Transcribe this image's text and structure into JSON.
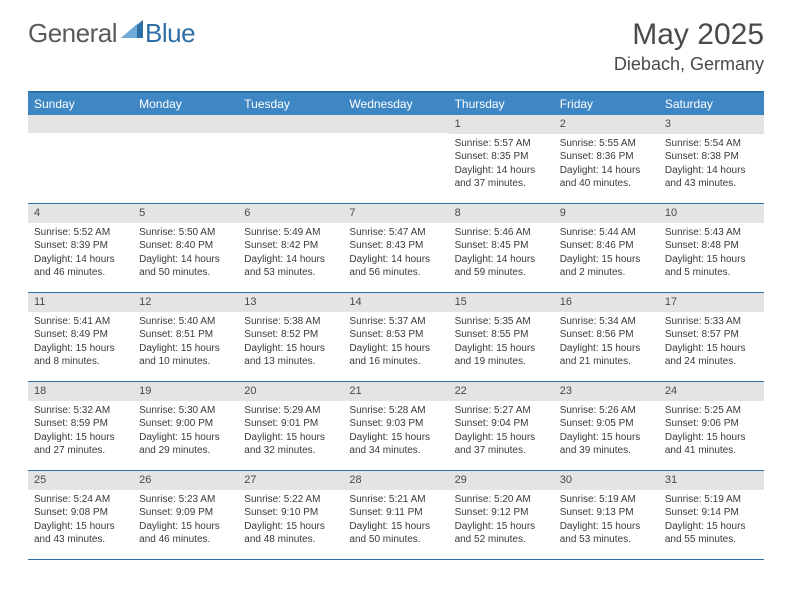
{
  "logo": {
    "part1": "General",
    "part2": "Blue"
  },
  "title": "May 2025",
  "location": "Diebach, Germany",
  "colors": {
    "header_bar": "#3e87c4",
    "border": "#2f6fa8",
    "daynum_bg": "#e4e4e4",
    "text": "#3a3a3a",
    "title_text": "#4a4a4a"
  },
  "weekdays": [
    "Sunday",
    "Monday",
    "Tuesday",
    "Wednesday",
    "Thursday",
    "Friday",
    "Saturday"
  ],
  "weeks": [
    [
      {
        "n": "",
        "sr": "",
        "ss": "",
        "dl": ""
      },
      {
        "n": "",
        "sr": "",
        "ss": "",
        "dl": ""
      },
      {
        "n": "",
        "sr": "",
        "ss": "",
        "dl": ""
      },
      {
        "n": "",
        "sr": "",
        "ss": "",
        "dl": ""
      },
      {
        "n": "1",
        "sr": "Sunrise: 5:57 AM",
        "ss": "Sunset: 8:35 PM",
        "dl": "Daylight: 14 hours and 37 minutes."
      },
      {
        "n": "2",
        "sr": "Sunrise: 5:55 AM",
        "ss": "Sunset: 8:36 PM",
        "dl": "Daylight: 14 hours and 40 minutes."
      },
      {
        "n": "3",
        "sr": "Sunrise: 5:54 AM",
        "ss": "Sunset: 8:38 PM",
        "dl": "Daylight: 14 hours and 43 minutes."
      }
    ],
    [
      {
        "n": "4",
        "sr": "Sunrise: 5:52 AM",
        "ss": "Sunset: 8:39 PM",
        "dl": "Daylight: 14 hours and 46 minutes."
      },
      {
        "n": "5",
        "sr": "Sunrise: 5:50 AM",
        "ss": "Sunset: 8:40 PM",
        "dl": "Daylight: 14 hours and 50 minutes."
      },
      {
        "n": "6",
        "sr": "Sunrise: 5:49 AM",
        "ss": "Sunset: 8:42 PM",
        "dl": "Daylight: 14 hours and 53 minutes."
      },
      {
        "n": "7",
        "sr": "Sunrise: 5:47 AM",
        "ss": "Sunset: 8:43 PM",
        "dl": "Daylight: 14 hours and 56 minutes."
      },
      {
        "n": "8",
        "sr": "Sunrise: 5:46 AM",
        "ss": "Sunset: 8:45 PM",
        "dl": "Daylight: 14 hours and 59 minutes."
      },
      {
        "n": "9",
        "sr": "Sunrise: 5:44 AM",
        "ss": "Sunset: 8:46 PM",
        "dl": "Daylight: 15 hours and 2 minutes."
      },
      {
        "n": "10",
        "sr": "Sunrise: 5:43 AM",
        "ss": "Sunset: 8:48 PM",
        "dl": "Daylight: 15 hours and 5 minutes."
      }
    ],
    [
      {
        "n": "11",
        "sr": "Sunrise: 5:41 AM",
        "ss": "Sunset: 8:49 PM",
        "dl": "Daylight: 15 hours and 8 minutes."
      },
      {
        "n": "12",
        "sr": "Sunrise: 5:40 AM",
        "ss": "Sunset: 8:51 PM",
        "dl": "Daylight: 15 hours and 10 minutes."
      },
      {
        "n": "13",
        "sr": "Sunrise: 5:38 AM",
        "ss": "Sunset: 8:52 PM",
        "dl": "Daylight: 15 hours and 13 minutes."
      },
      {
        "n": "14",
        "sr": "Sunrise: 5:37 AM",
        "ss": "Sunset: 8:53 PM",
        "dl": "Daylight: 15 hours and 16 minutes."
      },
      {
        "n": "15",
        "sr": "Sunrise: 5:35 AM",
        "ss": "Sunset: 8:55 PM",
        "dl": "Daylight: 15 hours and 19 minutes."
      },
      {
        "n": "16",
        "sr": "Sunrise: 5:34 AM",
        "ss": "Sunset: 8:56 PM",
        "dl": "Daylight: 15 hours and 21 minutes."
      },
      {
        "n": "17",
        "sr": "Sunrise: 5:33 AM",
        "ss": "Sunset: 8:57 PM",
        "dl": "Daylight: 15 hours and 24 minutes."
      }
    ],
    [
      {
        "n": "18",
        "sr": "Sunrise: 5:32 AM",
        "ss": "Sunset: 8:59 PM",
        "dl": "Daylight: 15 hours and 27 minutes."
      },
      {
        "n": "19",
        "sr": "Sunrise: 5:30 AM",
        "ss": "Sunset: 9:00 PM",
        "dl": "Daylight: 15 hours and 29 minutes."
      },
      {
        "n": "20",
        "sr": "Sunrise: 5:29 AM",
        "ss": "Sunset: 9:01 PM",
        "dl": "Daylight: 15 hours and 32 minutes."
      },
      {
        "n": "21",
        "sr": "Sunrise: 5:28 AM",
        "ss": "Sunset: 9:03 PM",
        "dl": "Daylight: 15 hours and 34 minutes."
      },
      {
        "n": "22",
        "sr": "Sunrise: 5:27 AM",
        "ss": "Sunset: 9:04 PM",
        "dl": "Daylight: 15 hours and 37 minutes."
      },
      {
        "n": "23",
        "sr": "Sunrise: 5:26 AM",
        "ss": "Sunset: 9:05 PM",
        "dl": "Daylight: 15 hours and 39 minutes."
      },
      {
        "n": "24",
        "sr": "Sunrise: 5:25 AM",
        "ss": "Sunset: 9:06 PM",
        "dl": "Daylight: 15 hours and 41 minutes."
      }
    ],
    [
      {
        "n": "25",
        "sr": "Sunrise: 5:24 AM",
        "ss": "Sunset: 9:08 PM",
        "dl": "Daylight: 15 hours and 43 minutes."
      },
      {
        "n": "26",
        "sr": "Sunrise: 5:23 AM",
        "ss": "Sunset: 9:09 PM",
        "dl": "Daylight: 15 hours and 46 minutes."
      },
      {
        "n": "27",
        "sr": "Sunrise: 5:22 AM",
        "ss": "Sunset: 9:10 PM",
        "dl": "Daylight: 15 hours and 48 minutes."
      },
      {
        "n": "28",
        "sr": "Sunrise: 5:21 AM",
        "ss": "Sunset: 9:11 PM",
        "dl": "Daylight: 15 hours and 50 minutes."
      },
      {
        "n": "29",
        "sr": "Sunrise: 5:20 AM",
        "ss": "Sunset: 9:12 PM",
        "dl": "Daylight: 15 hours and 52 minutes."
      },
      {
        "n": "30",
        "sr": "Sunrise: 5:19 AM",
        "ss": "Sunset: 9:13 PM",
        "dl": "Daylight: 15 hours and 53 minutes."
      },
      {
        "n": "31",
        "sr": "Sunrise: 5:19 AM",
        "ss": "Sunset: 9:14 PM",
        "dl": "Daylight: 15 hours and 55 minutes."
      }
    ]
  ]
}
